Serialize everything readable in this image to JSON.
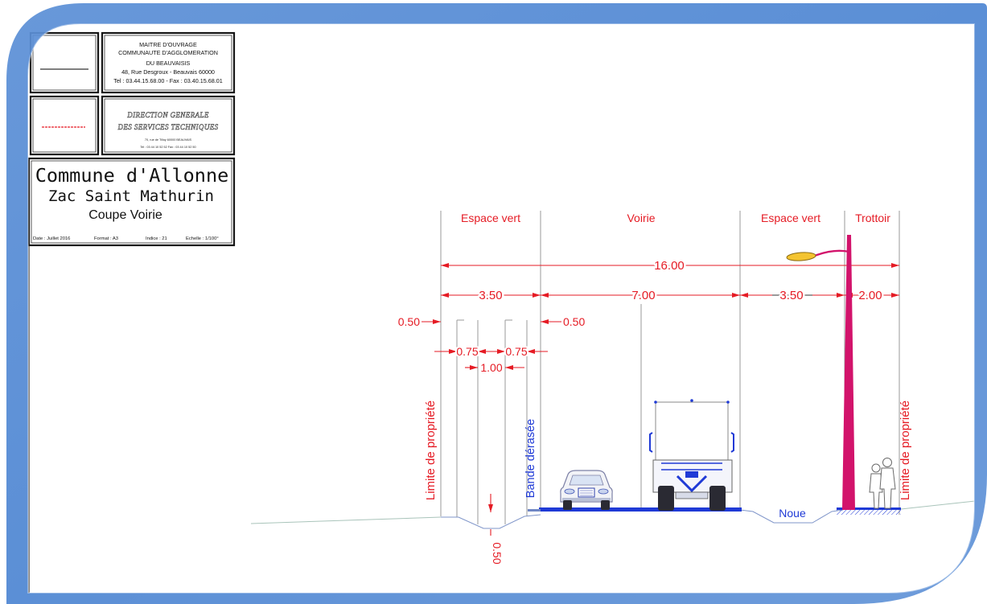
{
  "colors": {
    "dimension_red": "#e51b24",
    "annotation_blue": "#1f3ad6",
    "frame_blue": "#5b8fd6",
    "lamp_magenta": "#d2136b",
    "lamp_head_yellow": "#f4c430"
  },
  "title_block": {
    "maitre_ouvrage": {
      "lines": [
        "MAITRE D'OUVRAGE",
        "COMMUNAUTE D'AGGLOMERATION",
        "DU BEAUVAISIS",
        "48, Rue Desgroux - Beauvais 60000",
        "Tel : 03.44.15.68.00 - Fax : 03.40.15.68.01"
      ]
    },
    "direction": {
      "lines": [
        "DIRECTION GENERALE",
        "DES SERVICES TECHNIQUES"
      ],
      "address": "70, rue de Tilloy 60000 BEAUVAIS",
      "contact": "Tel : 03 44 10 52 52  Fax : 03 44 10 52 50"
    },
    "project": {
      "commune": "Commune d'Allonne",
      "zac": "Zac Saint Mathurin",
      "drawing": "Coupe Voirie"
    },
    "footer": {
      "date": "Date : Juillet 2016",
      "format": "Format : A3",
      "indice": "Indice : 21",
      "echelle": "Echelle : 1/100°"
    }
  },
  "section": {
    "zones": [
      "Espace vert",
      "Voirie",
      "Espace vert",
      "Trottoir"
    ],
    "total_width": "16.00",
    "zone_widths": [
      "3.50",
      "7.00",
      "3.50",
      "2.00"
    ],
    "offsets": {
      "left": "0.50",
      "right": "0.50"
    },
    "ditch_widths": [
      "0.75",
      "0.75"
    ],
    "ditch_bottom": "1.00",
    "ditch_depth": "0.50",
    "annotations": {
      "property_limit_left": "Limite de propriété",
      "bande_derasee": "Bande dérasée",
      "property_limit_right": "Limite de propriété",
      "noue": "Noue"
    }
  }
}
